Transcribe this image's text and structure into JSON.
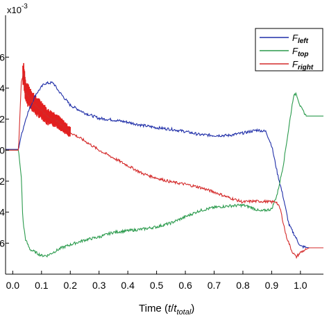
{
  "chart_data": {
    "type": "line",
    "xlabel_prefix": "Time (",
    "xlabel_var": "t",
    "xlabel_slash": "/",
    "xlabel_var2": "t",
    "xlabel_sub": "total",
    "xlabel_suffix": ")",
    "y_multiplier_base": "x10",
    "y_multiplier_exp": "-3",
    "xlim": [
      -0.025,
      1.08
    ],
    "ylim": [
      -8.0,
      8.7
    ],
    "x_ticks": [
      "0.0",
      "0.1",
      "0.2",
      "0.3",
      "0.4",
      "0.5",
      "0.6",
      "0.7",
      "0.8",
      "0.9",
      "1.0"
    ],
    "x_tick_values": [
      0.0,
      0.1,
      0.2,
      0.3,
      0.4,
      0.5,
      0.6,
      0.7,
      0.8,
      0.9,
      1.0
    ],
    "y_ticks": [
      {
        "label": "6",
        "value": 6.0
      },
      {
        "label": "4",
        "value": 4.0
      },
      {
        "label": "2",
        "value": 2.0
      },
      {
        "label": "0",
        "value": 0.0
      },
      {
        "label": "2",
        "value": -2.0
      },
      {
        "label": "4",
        "value": -4.0
      },
      {
        "label": "6",
        "value": -6.0
      }
    ],
    "grid": false,
    "legend_position": "top-right",
    "series": [
      {
        "name_base": "F",
        "name_sub": "left",
        "color": "#1f2ea8",
        "points": [
          [
            -0.03,
            0.05
          ],
          [
            0.02,
            0.05
          ],
          [
            0.03,
            1.0
          ],
          [
            0.05,
            2.3
          ],
          [
            0.08,
            3.6
          ],
          [
            0.11,
            4.3
          ],
          [
            0.14,
            4.35
          ],
          [
            0.16,
            3.8
          ],
          [
            0.2,
            2.9
          ],
          [
            0.25,
            2.4
          ],
          [
            0.3,
            2.05
          ],
          [
            0.35,
            1.95
          ],
          [
            0.4,
            1.8
          ],
          [
            0.45,
            1.6
          ],
          [
            0.5,
            1.45
          ],
          [
            0.55,
            1.35
          ],
          [
            0.6,
            1.2
          ],
          [
            0.65,
            1.0
          ],
          [
            0.7,
            0.95
          ],
          [
            0.75,
            0.95
          ],
          [
            0.8,
            1.1
          ],
          [
            0.85,
            1.3
          ],
          [
            0.88,
            1.2
          ],
          [
            0.9,
            0.3
          ],
          [
            0.92,
            -1.5
          ],
          [
            0.94,
            -3.0
          ],
          [
            0.96,
            -4.8
          ],
          [
            0.98,
            -5.5
          ],
          [
            1.0,
            -6.2
          ],
          [
            1.03,
            -6.3
          ],
          [
            1.08,
            -6.3
          ]
        ]
      },
      {
        "name_base": "F",
        "name_sub": "top",
        "color": "#2a9a4c",
        "points": [
          [
            -0.03,
            0.0
          ],
          [
            0.02,
            0.0
          ],
          [
            0.03,
            -1.8
          ],
          [
            0.035,
            -4.5
          ],
          [
            0.045,
            -5.8
          ],
          [
            0.06,
            -6.4
          ],
          [
            0.08,
            -6.6
          ],
          [
            0.1,
            -6.8
          ],
          [
            0.12,
            -6.8
          ],
          [
            0.14,
            -6.6
          ],
          [
            0.17,
            -6.3
          ],
          [
            0.2,
            -6.1
          ],
          [
            0.25,
            -5.8
          ],
          [
            0.3,
            -5.6
          ],
          [
            0.35,
            -5.3
          ],
          [
            0.4,
            -5.2
          ],
          [
            0.45,
            -5.1
          ],
          [
            0.5,
            -4.95
          ],
          [
            0.55,
            -4.7
          ],
          [
            0.6,
            -4.3
          ],
          [
            0.65,
            -3.9
          ],
          [
            0.7,
            -3.7
          ],
          [
            0.75,
            -3.6
          ],
          [
            0.8,
            -3.55
          ],
          [
            0.83,
            -3.7
          ],
          [
            0.86,
            -3.95
          ],
          [
            0.9,
            -3.8
          ],
          [
            0.92,
            -2.8
          ],
          [
            0.94,
            -1.0
          ],
          [
            0.96,
            1.5
          ],
          [
            0.975,
            3.4
          ],
          [
            0.985,
            3.7
          ],
          [
            1.0,
            2.8
          ],
          [
            1.02,
            2.2
          ],
          [
            1.08,
            2.2
          ]
        ]
      },
      {
        "name_base": "F",
        "name_sub": "right",
        "color": "#d42a2a",
        "points": [
          [
            -0.03,
            0.0
          ],
          [
            0.02,
            0.0
          ],
          [
            0.03,
            4.5
          ],
          [
            0.038,
            5.0
          ],
          [
            0.045,
            3.7
          ],
          [
            0.06,
            3.4
          ],
          [
            0.08,
            2.85
          ],
          [
            0.1,
            2.6
          ],
          [
            0.12,
            2.15
          ],
          [
            0.15,
            1.95
          ],
          [
            0.2,
            1.15
          ],
          [
            0.25,
            0.6
          ],
          [
            0.3,
            0.0
          ],
          [
            0.35,
            -0.5
          ],
          [
            0.4,
            -1.0
          ],
          [
            0.45,
            -1.5
          ],
          [
            0.5,
            -1.8
          ],
          [
            0.55,
            -2.05
          ],
          [
            0.6,
            -2.2
          ],
          [
            0.65,
            -2.4
          ],
          [
            0.7,
            -2.7
          ],
          [
            0.75,
            -3.05
          ],
          [
            0.8,
            -3.35
          ],
          [
            0.83,
            -3.3
          ],
          [
            0.87,
            -3.3
          ],
          [
            0.9,
            -3.35
          ],
          [
            0.915,
            -3.3
          ],
          [
            0.93,
            -3.8
          ],
          [
            0.95,
            -5.5
          ],
          [
            0.97,
            -6.5
          ],
          [
            0.985,
            -6.9
          ],
          [
            1.0,
            -6.6
          ],
          [
            1.03,
            -6.3
          ],
          [
            1.08,
            -6.3
          ]
        ]
      }
    ],
    "noise_band": {
      "series": "F_right",
      "x_from": 0.035,
      "x_to": 0.2,
      "amplitude": 0.8
    }
  }
}
